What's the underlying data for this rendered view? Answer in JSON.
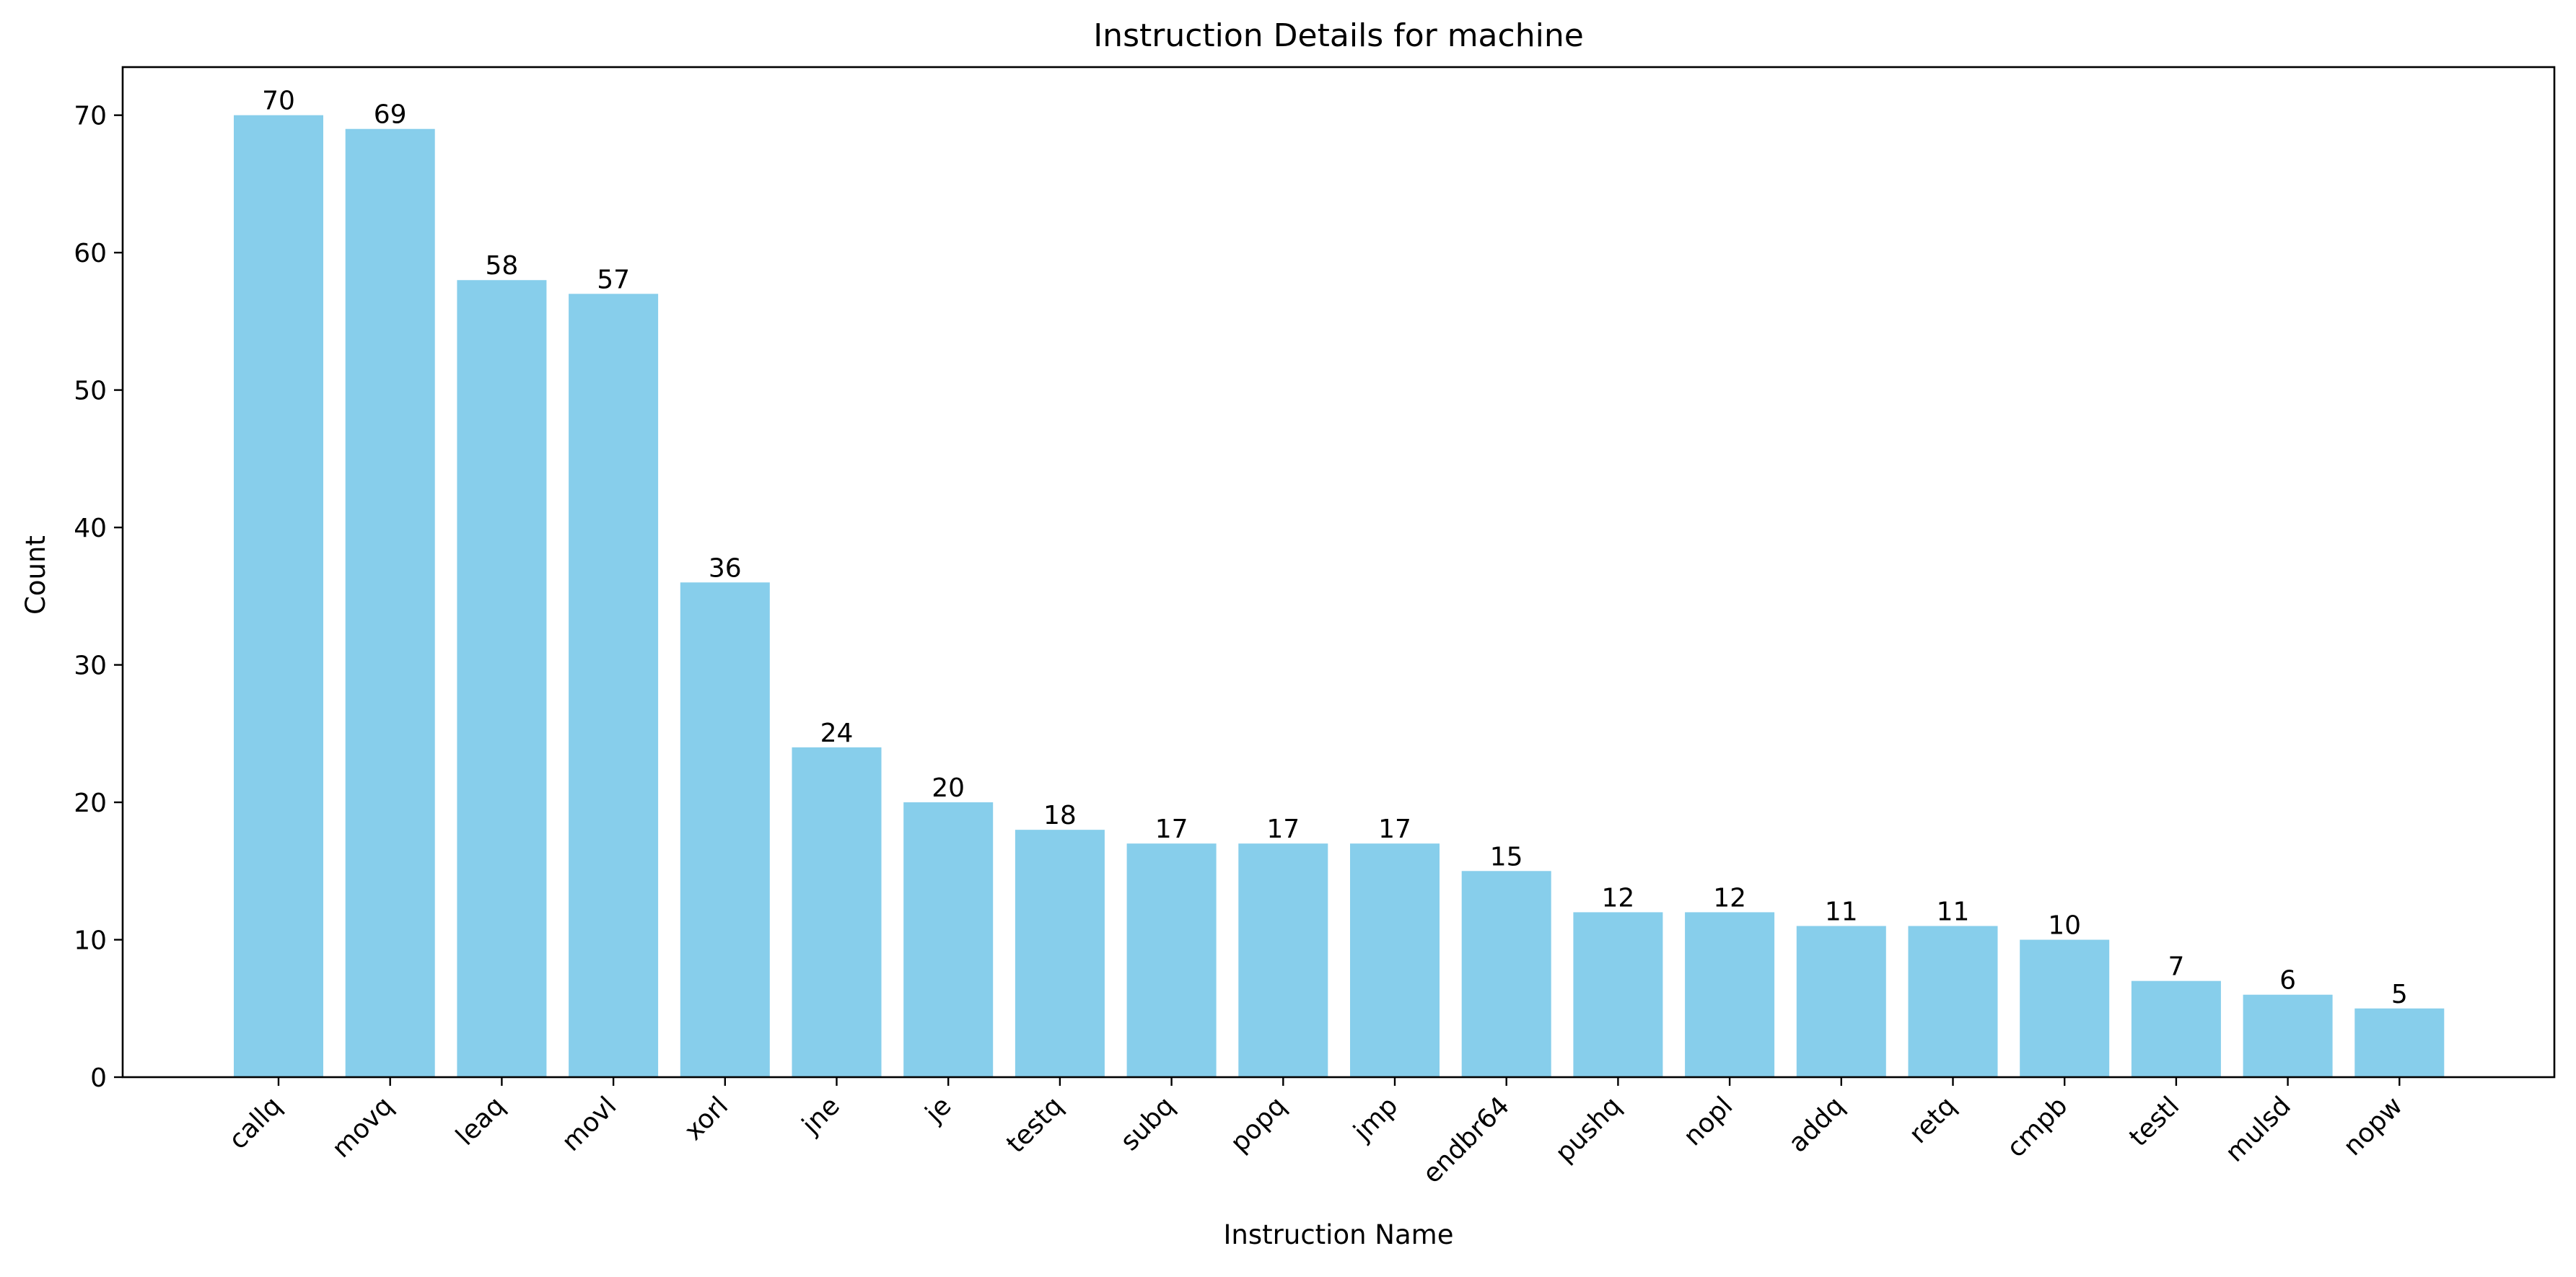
{
  "chart_data": {
    "type": "bar",
    "title": "Instruction Details for machine",
    "xlabel": "Instruction Name",
    "ylabel": "Count",
    "categories": [
      "callq",
      "movq",
      "leaq",
      "movl",
      "xorl",
      "jne",
      "je",
      "testq",
      "subq",
      "popq",
      "jmp",
      "endbr64",
      "pushq",
      "nopl",
      "addq",
      "retq",
      "cmpb",
      "testl",
      "mulsd",
      "nopw"
    ],
    "values": [
      70,
      69,
      58,
      57,
      36,
      24,
      20,
      18,
      17,
      17,
      17,
      15,
      12,
      12,
      11,
      11,
      10,
      7,
      6,
      5
    ],
    "ylim": [
      0,
      73.5
    ],
    "yticks": [
      0,
      10,
      20,
      30,
      40,
      50,
      60,
      70
    ],
    "bar_color": "#87CEEB",
    "grid": false,
    "data_labels": true,
    "xtick_rotation": 45
  }
}
